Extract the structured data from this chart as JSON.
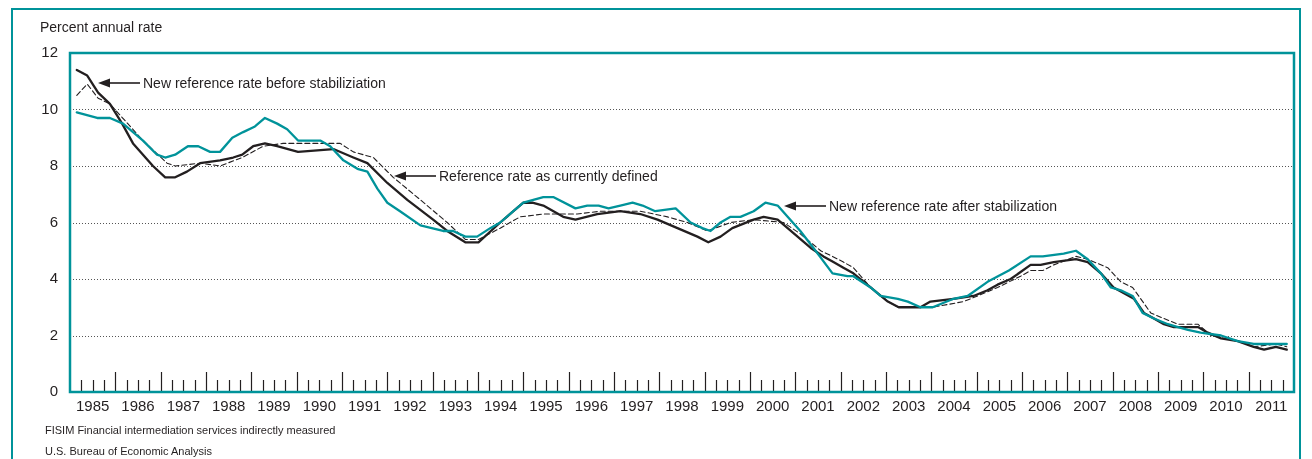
{
  "chart_data": {
    "type": "line",
    "ylabel": "Percent annual rate",
    "grid": "y",
    "legend": false,
    "marker": "none",
    "xlim": [
      1985,
      2012
    ],
    "ylim": [
      0,
      12
    ],
    "yticks": [
      0,
      2,
      4,
      6,
      8,
      10,
      12
    ],
    "xticks": [
      {
        "value": 1985.5,
        "label": "1985"
      },
      {
        "value": 1986.5,
        "label": "1986"
      },
      {
        "value": 1987.5,
        "label": "1987"
      },
      {
        "value": 1988.5,
        "label": "1988"
      },
      {
        "value": 1989.5,
        "label": "1989"
      },
      {
        "value": 1990.5,
        "label": "1990"
      },
      {
        "value": 1991.5,
        "label": "1991"
      },
      {
        "value": 1992.5,
        "label": "1992"
      },
      {
        "value": 1993.5,
        "label": "1993"
      },
      {
        "value": 1994.5,
        "label": "1994"
      },
      {
        "value": 1995.5,
        "label": "1995"
      },
      {
        "value": 1996.5,
        "label": "1996"
      },
      {
        "value": 1997.5,
        "label": "1997"
      },
      {
        "value": 1998.5,
        "label": "1998"
      },
      {
        "value": 1999.5,
        "label": "1999"
      },
      {
        "value": 2000.5,
        "label": "2000"
      },
      {
        "value": 2001.5,
        "label": "2001"
      },
      {
        "value": 2002.5,
        "label": "2002"
      },
      {
        "value": 2003.5,
        "label": "2003"
      },
      {
        "value": 2004.5,
        "label": "2004"
      },
      {
        "value": 2005.5,
        "label": "2005"
      },
      {
        "value": 2006.5,
        "label": "2006"
      },
      {
        "value": 2007.5,
        "label": "2007"
      },
      {
        "value": 2008.5,
        "label": "2008"
      },
      {
        "value": 2009.5,
        "label": "2009"
      },
      {
        "value": 2010.5,
        "label": "2010"
      },
      {
        "value": 2011.5,
        "label": "2011"
      },
      {
        "value": 1985.25,
        "label": null
      },
      {
        "value": 1985.5,
        "label": null
      },
      {
        "value": 1985.75,
        "label": null
      },
      {
        "value": 1986.25,
        "label": null
      },
      {
        "value": 1986.5,
        "label": null
      },
      {
        "value": 1986.75,
        "label": null
      },
      {
        "value": 1987.25,
        "label": null
      },
      {
        "value": 1987.5,
        "label": null
      },
      {
        "value": 1987.75,
        "label": null
      },
      {
        "value": 1988.25,
        "label": null
      },
      {
        "value": 1988.5,
        "label": null
      },
      {
        "value": 1988.75,
        "label": null
      },
      {
        "value": 1989.25,
        "label": null
      },
      {
        "value": 1989.5,
        "label": null
      },
      {
        "value": 1989.75,
        "label": null
      },
      {
        "value": 1990.25,
        "label": null
      },
      {
        "value": 1990.5,
        "label": null
      },
      {
        "value": 1990.75,
        "label": null
      },
      {
        "value": 1991.25,
        "label": null
      },
      {
        "value": 1991.5,
        "label": null
      },
      {
        "value": 1991.75,
        "label": null
      },
      {
        "value": 1992.25,
        "label": null
      },
      {
        "value": 1992.5,
        "label": null
      },
      {
        "value": 1992.75,
        "label": null
      },
      {
        "value": 1993.25,
        "label": null
      },
      {
        "value": 1993.5,
        "label": null
      },
      {
        "value": 1993.75,
        "label": null
      },
      {
        "value": 1994.25,
        "label": null
      },
      {
        "value": 1994.5,
        "label": null
      },
      {
        "value": 1994.75,
        "label": null
      },
      {
        "value": 1995.25,
        "label": null
      },
      {
        "value": 1995.5,
        "label": null
      },
      {
        "value": 1995.75,
        "label": null
      },
      {
        "value": 1996.25,
        "label": null
      },
      {
        "value": 1996.5,
        "label": null
      },
      {
        "value": 1996.75,
        "label": null
      },
      {
        "value": 1997.25,
        "label": null
      },
      {
        "value": 1997.5,
        "label": null
      },
      {
        "value": 1997.75,
        "label": null
      },
      {
        "value": 1998.25,
        "label": null
      },
      {
        "value": 1998.5,
        "label": null
      },
      {
        "value": 1998.75,
        "label": null
      },
      {
        "value": 1999.25,
        "label": null
      },
      {
        "value": 1999.5,
        "label": null
      },
      {
        "value": 1999.75,
        "label": null
      },
      {
        "value": 2000.25,
        "label": null
      },
      {
        "value": 2000.5,
        "label": null
      },
      {
        "value": 2000.75,
        "label": null
      },
      {
        "value": 2001.25,
        "label": null
      },
      {
        "value": 2001.5,
        "label": null
      },
      {
        "value": 2001.75,
        "label": null
      },
      {
        "value": 2002.25,
        "label": null
      },
      {
        "value": 2002.5,
        "label": null
      },
      {
        "value": 2002.75,
        "label": null
      },
      {
        "value": 2003.25,
        "label": null
      },
      {
        "value": 2003.5,
        "label": null
      },
      {
        "value": 2003.75,
        "label": null
      },
      {
        "value": 2004.25,
        "label": null
      },
      {
        "value": 2004.5,
        "label": null
      },
      {
        "value": 2004.75,
        "label": null
      },
      {
        "value": 2005.25,
        "label": null
      },
      {
        "value": 2005.5,
        "label": null
      },
      {
        "value": 2005.75,
        "label": null
      },
      {
        "value": 2006.25,
        "label": null
      },
      {
        "value": 2006.5,
        "label": null
      },
      {
        "value": 2006.75,
        "label": null
      },
      {
        "value": 2007.25,
        "label": null
      },
      {
        "value": 2007.5,
        "label": null
      },
      {
        "value": 2007.75,
        "label": null
      },
      {
        "value": 2008.25,
        "label": null
      },
      {
        "value": 2008.5,
        "label": null
      },
      {
        "value": 2008.75,
        "label": null
      },
      {
        "value": 2009.25,
        "label": null
      },
      {
        "value": 2009.5,
        "label": null
      },
      {
        "value": 2009.75,
        "label": null
      },
      {
        "value": 2010.25,
        "label": null
      },
      {
        "value": 2010.5,
        "label": null
      },
      {
        "value": 2010.75,
        "label": null
      },
      {
        "value": 2011.25,
        "label": null
      },
      {
        "value": 2011.5,
        "label": null
      },
      {
        "value": 2011.75,
        "label": null
      }
    ],
    "series": [
      {
        "color": "#00939a",
        "line_style": "solid",
        "x": [
          1985.15,
          1985.6,
          1985.88,
          1986.17,
          1986.39,
          1986.61,
          1986.92,
          1987.1,
          1987.32,
          1987.6,
          1987.83,
          1988.09,
          1988.31,
          1988.58,
          1988.82,
          1989.08,
          1989.3,
          1989.57,
          1989.79,
          1990.03,
          1990.52,
          1990.74,
          1991.03,
          1991.34,
          1991.56,
          1991.78,
          1992,
          1992.28,
          1992.73,
          1993.23,
          1993.45,
          1993.72,
          1993.98,
          1994.27,
          1994.49,
          1994.78,
          1995,
          1995.44,
          1995.66,
          1996.15,
          1996.41,
          1996.66,
          1996.88,
          1997.14,
          1997.41,
          1997.63,
          1997.91,
          1998.36,
          1998.69,
          1998.95,
          1999.13,
          1999.35,
          1999.57,
          1999.79,
          2000.08,
          2000.34,
          2000.61,
          2000.83,
          2001.11,
          2001.4,
          2001.82,
          2002.15,
          2002.28,
          2002.66,
          2002.88,
          2003.26,
          2003.48,
          2003.76,
          2004.03,
          2004.49,
          2004.8,
          2005.24,
          2005.71,
          2006.19,
          2006.46,
          2006.92,
          2007.19,
          2007.45,
          2007.74,
          2007.96,
          2008.18,
          2008.44,
          2008.66,
          2008.91,
          2009.22,
          2009.44,
          2009.66,
          2009.94,
          2010.39,
          2010.76,
          2011.11,
          2011.6,
          2011.84
        ],
        "values": [
          9.9,
          9.7,
          9.7,
          9.5,
          9.2,
          8.9,
          8.4,
          8.3,
          8.4,
          8.7,
          8.7,
          8.5,
          8.5,
          9.0,
          9.2,
          9.4,
          9.7,
          9.5,
          9.3,
          8.9,
          8.9,
          8.7,
          8.2,
          7.9,
          7.8,
          7.2,
          6.7,
          6.4,
          5.9,
          5.7,
          5.7,
          5.5,
          5.5,
          5.8,
          6.0,
          6.4,
          6.7,
          6.9,
          6.9,
          6.5,
          6.6,
          6.6,
          6.5,
          6.6,
          6.7,
          6.6,
          6.4,
          6.5,
          6.0,
          5.8,
          5.7,
          6.0,
          6.2,
          6.2,
          6.4,
          6.7,
          6.6,
          6.2,
          5.7,
          5.1,
          4.2,
          4.1,
          4.1,
          3.7,
          3.4,
          3.3,
          3.2,
          3.0,
          3.0,
          3.3,
          3.4,
          3.9,
          4.3,
          4.8,
          4.8,
          4.9,
          5.0,
          4.7,
          4.2,
          3.7,
          3.6,
          3.4,
          2.8,
          2.6,
          2.4,
          2.3,
          2.2,
          2.1,
          2.0,
          1.8,
          1.7,
          1.7,
          1.7
        ]
      },
      {
        "color": "#231f20",
        "line_style": "dashed",
        "x": [
          1985.15,
          1985.38,
          1985.62,
          1985.88,
          1986.61,
          1987.14,
          1987.32,
          1987.87,
          1988.31,
          1988.8,
          1989.26,
          1989.7,
          1990.52,
          1990.96,
          1991.25,
          1991.69,
          1992.13,
          1992.73,
          1993.32,
          1993.72,
          1994.01,
          1994.49,
          1994.93,
          1995.44,
          1996.19,
          1996.7,
          1997.58,
          1998.18,
          1998.62,
          1999.06,
          1999.57,
          2000.08,
          2000.74,
          2001.11,
          2001.56,
          2001.82,
          2002.06,
          2002.28,
          2002.66,
          2003.04,
          2003.28,
          2003.76,
          2004.03,
          2004.71,
          2005.02,
          2005.46,
          2005.97,
          2006.19,
          2006.46,
          2006.7,
          2007.19,
          2007.45,
          2007.89,
          2008.18,
          2008.44,
          2008.84,
          2009.13,
          2009.44,
          2009.88,
          2010.17,
          2010.76,
          2011.11,
          2011.6,
          2011.84
        ],
        "values": [
          10.5,
          10.9,
          10.4,
          10.2,
          8.9,
          8.1,
          8.0,
          8.1,
          8.0,
          8.3,
          8.7,
          8.8,
          8.8,
          8.8,
          8.5,
          8.3,
          7.6,
          6.8,
          6.0,
          5.4,
          5.4,
          5.8,
          6.2,
          6.3,
          6.3,
          6.4,
          6.4,
          6.2,
          6.0,
          5.7,
          6.0,
          6.1,
          6.0,
          5.6,
          5.0,
          4.8,
          4.6,
          4.4,
          3.7,
          3.2,
          3.0,
          3.0,
          3.0,
          3.2,
          3.4,
          3.7,
          4.1,
          4.3,
          4.3,
          4.5,
          4.8,
          4.7,
          4.4,
          3.9,
          3.7,
          2.8,
          2.6,
          2.4,
          2.4,
          2.0,
          1.8,
          1.6,
          1.7,
          1.6
        ]
      },
      {
        "color": "#231f20",
        "line_style": "solid",
        "x": [
          1985.15,
          1985.38,
          1985.62,
          1985.88,
          1986.15,
          1986.39,
          1986.83,
          1987.1,
          1987.32,
          1987.58,
          1987.87,
          1988.31,
          1988.6,
          1988.8,
          1989.04,
          1989.3,
          1989.57,
          1990.03,
          1990.81,
          1991.25,
          1991.56,
          1992,
          1992.44,
          1993.01,
          1993.32,
          1993.72,
          1994.01,
          1994.49,
          1995,
          1995.2,
          1995.44,
          1995.88,
          1996.15,
          1996.63,
          1997.14,
          1997.58,
          1997.96,
          1998.4,
          1998.84,
          1999.08,
          1999.35,
          1999.61,
          2000.08,
          2000.3,
          2000.61,
          2000.83,
          2001.34,
          2001.62,
          2001.84,
          2002.06,
          2002.28,
          2002.66,
          2003.04,
          2003.28,
          2003.5,
          2003.76,
          2003.98,
          2004.49,
          2004.93,
          2005.24,
          2005.46,
          2005.75,
          2006.19,
          2006.41,
          2006.7,
          2007.19,
          2007.45,
          2007.74,
          2008.02,
          2008.47,
          2008.69,
          2008.91,
          2009.13,
          2009.35,
          2009.57,
          2009.88,
          2010.1,
          2010.39,
          2010.76,
          2011.11,
          2011.34,
          2011.6,
          2011.84
        ],
        "values": [
          11.4,
          11.2,
          10.6,
          10.2,
          9.5,
          8.8,
          8.0,
          7.6,
          7.6,
          7.8,
          8.1,
          8.2,
          8.3,
          8.4,
          8.7,
          8.8,
          8.7,
          8.5,
          8.6,
          8.3,
          8.1,
          7.4,
          6.8,
          6.1,
          5.7,
          5.3,
          5.3,
          6.0,
          6.7,
          6.7,
          6.6,
          6.2,
          6.1,
          6.3,
          6.4,
          6.3,
          6.1,
          5.8,
          5.5,
          5.3,
          5.5,
          5.8,
          6.1,
          6.2,
          6.1,
          5.8,
          5.1,
          4.8,
          4.6,
          4.4,
          4.2,
          3.7,
          3.2,
          3.0,
          3.0,
          3.0,
          3.2,
          3.3,
          3.4,
          3.6,
          3.8,
          4.0,
          4.5,
          4.5,
          4.6,
          4.7,
          4.6,
          4.2,
          3.7,
          3.3,
          2.8,
          2.6,
          2.4,
          2.3,
          2.3,
          2.3,
          2.1,
          1.9,
          1.8,
          1.6,
          1.5,
          1.6,
          1.5
        ]
      }
    ],
    "annotations": [
      "New reference rate before stabiliziation",
      "Reference rate as currently defined",
      "New reference rate after stabilization",
      "FISIM Financial intermediation services indirectly measured",
      "U.S. Bureau of Economic Analysis"
    ]
  }
}
